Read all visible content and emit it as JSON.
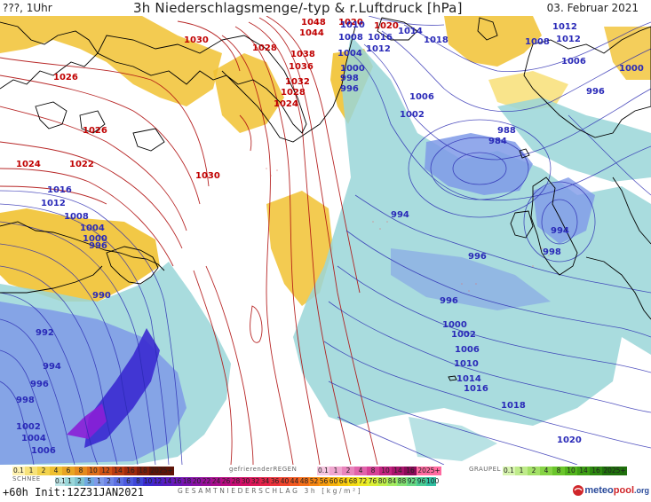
{
  "header": {
    "left": "???, 1Uhr",
    "title": "3h Niederschlagsmenge/-typ & r.Luftdruck [hPa]",
    "date": "03. Februar 2021"
  },
  "colors": {
    "snow": "#f1c232",
    "snow_light": "#f7dd6e",
    "rain_light": "#9ad6d8",
    "rain_mid": "#7f9ae8",
    "rain_heavy": "#3a2ad0",
    "isobar_high": "#b01010",
    "isobar_low": "#2828b0",
    "coast": "#000000",
    "label_high": "#c00000",
    "label_low": "#2a2ab8",
    "logo_blue": "#2a4a9a",
    "logo_red": "#d0262a"
  },
  "pressure_labels_high": [
    "1030",
    "1026",
    "1026",
    "1024",
    "1022",
    "1030",
    "1048",
    "1044",
    "1028",
    "1038",
    "1036",
    "1032",
    "1028",
    "1024",
    "1020",
    "1020"
  ],
  "pressure_labels_low": [
    "1018",
    "1014",
    "1010",
    "1012",
    "1008",
    "1016",
    "1012",
    "1004",
    "1000",
    "998",
    "996",
    "1006",
    "1002",
    "1008",
    "1012",
    "1010",
    "1006",
    "1000",
    "996",
    "988",
    "984",
    "994",
    "994",
    "998",
    "996",
    "996",
    "1000",
    "1002",
    "1006",
    "1010",
    "1014",
    "1016",
    "1018",
    "1020",
    "1016",
    "1012",
    "1008",
    "1004",
    "1000",
    "996",
    "990",
    "992",
    "994",
    "996",
    "998",
    "1002",
    "1004",
    "1006"
  ],
  "legend": {
    "snow_title": "SCHNEE",
    "snow_values": [
      "0.1",
      "1",
      "2",
      "4",
      "6",
      "8",
      "10",
      "12",
      "14",
      "16",
      "18",
      "2025+"
    ],
    "frz_title": "gefrierenderREGEN",
    "frz_values": [
      "0.1",
      "1",
      "2",
      "4",
      "8",
      "10",
      "14",
      "16",
      "2025+"
    ],
    "graupel_title": "GRAUPEL",
    "graupel_values": [
      "0.1",
      "1",
      "2",
      "4",
      "8",
      "10",
      "14",
      "16",
      "2025+"
    ],
    "total_values": [
      "0.1",
      "1",
      "2",
      "5",
      "1",
      "2",
      "4",
      "6",
      "8",
      "10",
      "12",
      "14",
      "16",
      "18",
      "20",
      "22",
      "24",
      "26",
      "28",
      "30",
      "32",
      "34",
      "36",
      "40",
      "44",
      "48",
      "52",
      "56",
      "60",
      "64",
      "68",
      "72",
      "76",
      "80",
      "84",
      "88",
      "92",
      "96",
      "100"
    ],
    "total_title": "GESAMTNIEDERSCHLAG 3h [kg/m²]"
  },
  "footer": {
    "run": "+60h Init:12Z31JAN2021",
    "logo_a": "meteo",
    "logo_b": "pool",
    "logo_c": ".org"
  }
}
